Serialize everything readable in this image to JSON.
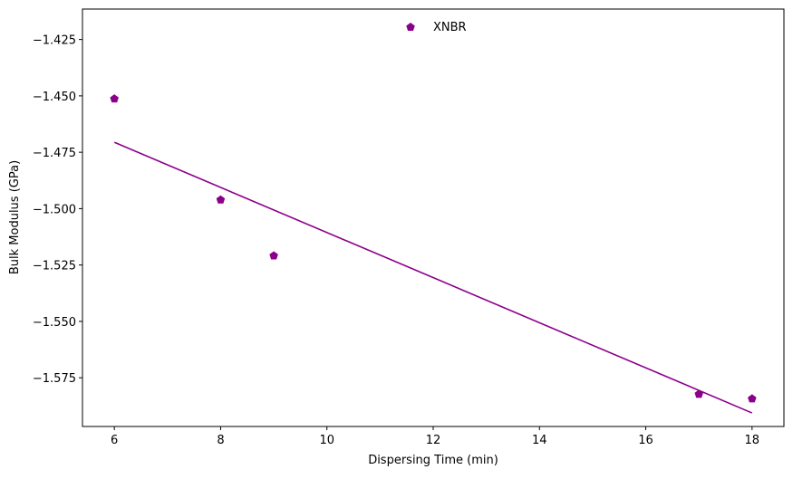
{
  "chart_data": {
    "type": "scatter",
    "xlabel": "Dispersing Time (min)",
    "ylabel": "Bulk Modulus (GPa)",
    "xlim": [
      5.4,
      18.6
    ],
    "ylim": [
      -1.5966,
      -1.4115
    ],
    "xticks": [
      6,
      8,
      10,
      12,
      14,
      16,
      18
    ],
    "xtick_labels": [
      "6",
      "8",
      "10",
      "12",
      "14",
      "16",
      "18"
    ],
    "yticks": [
      -1.425,
      -1.45,
      -1.475,
      -1.5,
      -1.525,
      -1.55,
      -1.575
    ],
    "ytick_labels": [
      "−1.425",
      "−1.450",
      "−1.475",
      "−1.500",
      "−1.525",
      "−1.550",
      "−1.575"
    ],
    "grid": false,
    "legend_position": "top-center",
    "series": [
      {
        "name": "XNBR",
        "marker": "pentagon",
        "color": "#8b008b",
        "points": [
          {
            "x": 6,
            "y": -1.4513
          },
          {
            "x": 8,
            "y": -1.4961
          },
          {
            "x": 9,
            "y": -1.5209
          },
          {
            "x": 17,
            "y": -1.5823
          },
          {
            "x": 18,
            "y": -1.5843
          }
        ]
      }
    ],
    "trendline": {
      "color": "#8b008b",
      "points": [
        {
          "x": 6,
          "y": -1.4706
        },
        {
          "x": 18,
          "y": -1.5906
        }
      ]
    }
  }
}
